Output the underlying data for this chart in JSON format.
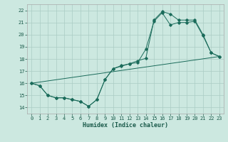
{
  "xlabel": "Humidex (Indice chaleur)",
  "xlim": [
    -0.5,
    23.5
  ],
  "ylim": [
    13.5,
    22.5
  ],
  "xticks": [
    0,
    1,
    2,
    3,
    4,
    5,
    6,
    7,
    8,
    9,
    10,
    11,
    12,
    13,
    14,
    15,
    16,
    17,
    18,
    19,
    20,
    21,
    22,
    23
  ],
  "yticks": [
    14,
    15,
    16,
    17,
    18,
    19,
    20,
    21,
    22
  ],
  "background_color": "#cce8e0",
  "grid_color": "#aaccc4",
  "line_color": "#1a6b5a",
  "line1_x": [
    0,
    1,
    2,
    3,
    4,
    5,
    6,
    7,
    8,
    9,
    10,
    11,
    12,
    13,
    14,
    15,
    16,
    17,
    18,
    19,
    20,
    21,
    22,
    23
  ],
  "line1_y": [
    16.0,
    15.8,
    15.0,
    14.8,
    14.8,
    14.65,
    14.5,
    14.1,
    14.65,
    16.3,
    17.2,
    17.4,
    17.6,
    17.7,
    18.8,
    21.1,
    21.8,
    20.8,
    21.0,
    21.0,
    21.1,
    19.9,
    18.5,
    18.2
  ],
  "line2_x": [
    0,
    1,
    2,
    3,
    4,
    5,
    6,
    7,
    8,
    9,
    10,
    11,
    12,
    13,
    14,
    15,
    16,
    17,
    18,
    19,
    20,
    21,
    22,
    23
  ],
  "line2_y": [
    16.0,
    15.8,
    15.0,
    14.8,
    14.8,
    14.65,
    14.5,
    14.1,
    14.65,
    16.3,
    17.2,
    17.45,
    17.6,
    17.85,
    18.05,
    21.2,
    21.9,
    21.7,
    21.2,
    21.2,
    21.2,
    20.0,
    18.5,
    18.2
  ],
  "line3_x": [
    0,
    23
  ],
  "line3_y": [
    16.0,
    18.2
  ]
}
